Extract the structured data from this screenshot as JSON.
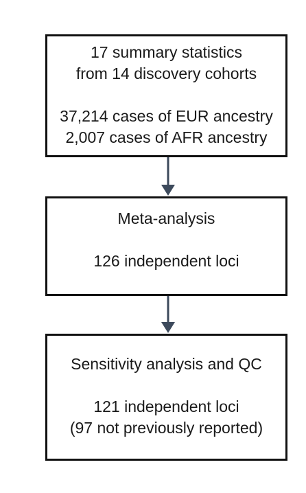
{
  "flowchart": {
    "steps": [
      {
        "lines_top": [
          "17 summary statistics",
          "from 14 discovery cohorts"
        ],
        "lines_bottom": [
          "37,214 cases of EUR ancestry",
          "2,007 cases of AFR ancestry"
        ]
      },
      {
        "lines_top": [
          "Meta-analysis"
        ],
        "lines_bottom": [
          "126 independent loci"
        ]
      },
      {
        "lines_top": [
          "Sensitivity analysis and QC"
        ],
        "lines_bottom": [
          "121 independent loci",
          "(97 not previously reported)"
        ]
      }
    ]
  },
  "colors": {
    "box_border": "#111111",
    "arrow": "#3d4a5c",
    "text": "#1a1a1a"
  }
}
